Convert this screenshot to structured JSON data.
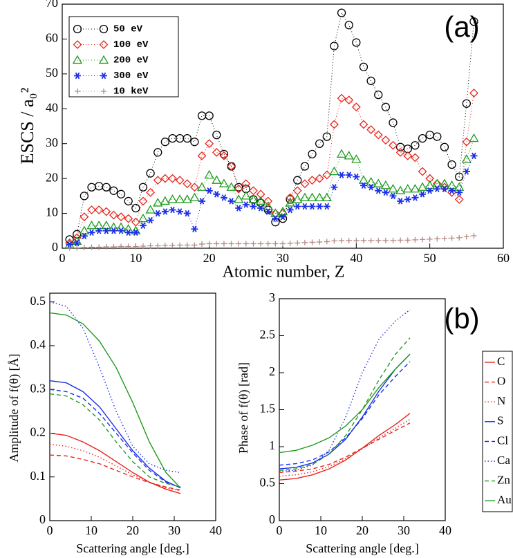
{
  "chart_data": [
    {
      "type": "line",
      "annotation": "(a)",
      "xlabel": "Atomic number, Z",
      "ylabel": "ESCS / a₀²",
      "xlim": [
        0,
        60
      ],
      "xticks": [
        0,
        10,
        20,
        30,
        40,
        50,
        60
      ],
      "ylim": [
        0,
        70
      ],
      "yticks": [
        0,
        10,
        20,
        30,
        40,
        50,
        60,
        70
      ],
      "x": [
        1,
        2,
        3,
        4,
        5,
        6,
        7,
        8,
        9,
        10,
        11,
        12,
        13,
        14,
        15,
        16,
        17,
        18,
        19,
        20,
        21,
        22,
        23,
        24,
        25,
        26,
        27,
        28,
        29,
        30,
        31,
        32,
        33,
        34,
        35,
        36,
        37,
        38,
        39,
        40,
        41,
        42,
        43,
        44,
        45,
        46,
        47,
        48,
        49,
        50,
        51,
        52,
        53,
        54,
        55,
        56
      ],
      "series": [
        {
          "name": "50  eV",
          "color": "#000000",
          "marker": "circle",
          "values": [
            2.5,
            4,
            15,
            17.5,
            17.8,
            17.5,
            16.5,
            15.5,
            13.5,
            11.5,
            17.5,
            21.5,
            27.5,
            30.5,
            31.5,
            31.5,
            31.5,
            30.5,
            38,
            38,
            32.5,
            27,
            23.5,
            17.5,
            17,
            14,
            13,
            11,
            7.5,
            8.5,
            14,
            19.5,
            23.5,
            27,
            30,
            32,
            58,
            67.5,
            64,
            59,
            52,
            48,
            44,
            40.5,
            36,
            29,
            28.5,
            29.5,
            31.5,
            32.5,
            32,
            29,
            24,
            20.5,
            41.5,
            65
          ]
        },
        {
          "name": "100 eV",
          "color": "#e8231c",
          "marker": "diamond",
          "values": [
            1.5,
            3,
            9,
            11,
            11,
            10.5,
            9.5,
            9,
            8.5,
            7.5,
            13.5,
            16,
            19.5,
            20,
            20,
            19.5,
            18.5,
            17.5,
            26.5,
            30,
            27.5,
            26.5,
            23.5,
            17,
            18.5,
            16.5,
            15.5,
            13.5,
            10,
            10,
            14.5,
            16.5,
            18.5,
            19.5,
            20,
            21,
            35.5,
            43,
            42.5,
            40.5,
            35.5,
            34,
            32.5,
            31,
            29.5,
            27.5,
            26.5,
            26,
            22,
            20,
            18.5,
            17.5,
            16,
            14,
            30.5,
            44.5
          ]
        },
        {
          "name": "200 eV",
          "color": "#1f9a1f",
          "marker": "triangle",
          "values": [
            1,
            2,
            5,
            6.5,
            6.5,
            6.5,
            6,
            6,
            5.5,
            5,
            8.5,
            11,
            13,
            13.5,
            14,
            14,
            14,
            14.5,
            17.5,
            21,
            19.5,
            18.5,
            17.5,
            14,
            15,
            14,
            13.5,
            12,
            10,
            10.5,
            13,
            14,
            14.5,
            14.5,
            14.5,
            14.5,
            22,
            27,
            26.5,
            25.5,
            19.5,
            19,
            18.5,
            18,
            17,
            16.5,
            17,
            17,
            17.5,
            18,
            18.5,
            18.5,
            18,
            17.5,
            25.5,
            31.5
          ]
        },
        {
          "name": "300 eV",
          "color": "#1a2ee8",
          "marker": "asterisk",
          "values": [
            1,
            1.5,
            3.5,
            4.5,
            5,
            5,
            5,
            5,
            4.5,
            4.5,
            6.5,
            8,
            10,
            10.5,
            11,
            10.5,
            10,
            5.5,
            13.5,
            16.5,
            15.5,
            14.5,
            13.5,
            11.5,
            12.5,
            12,
            11.5,
            10.5,
            8.5,
            9,
            11,
            12,
            12,
            12,
            12,
            12,
            17.5,
            21,
            21,
            20.5,
            18,
            17.5,
            16.5,
            16,
            15,
            13.5,
            14,
            14.5,
            15.5,
            16.5,
            17,
            17,
            16.5,
            16,
            22,
            26.5
          ]
        },
        {
          "name": "10 keV",
          "color": "#b58a85",
          "marker": "plus",
          "values": [
            0.1,
            0.1,
            0.2,
            0.3,
            0.3,
            0.4,
            0.4,
            0.5,
            0.5,
            0.5,
            0.6,
            0.7,
            0.7,
            0.8,
            0.8,
            0.9,
            0.9,
            0.9,
            1.2,
            1.3,
            1.3,
            1.3,
            1.3,
            1.3,
            1.3,
            1.3,
            1.3,
            1.3,
            1.3,
            1.3,
            1.4,
            1.5,
            1.6,
            1.7,
            1.8,
            1.9,
            2.1,
            2.2,
            2.2,
            2.2,
            2.2,
            2.2,
            2.2,
            2.2,
            2.2,
            2.3,
            2.3,
            2.4,
            2.5,
            2.6,
            2.7,
            2.8,
            2.9,
            3.0,
            3.3,
            3.6
          ]
        }
      ]
    },
    {
      "type": "line",
      "annotation": "(b)",
      "xlabel": "Scattering angle [deg.]",
      "ylabel": "Amplitude of  f(θ)  [Å]",
      "xlim": [
        0,
        40
      ],
      "xticks": [
        0,
        10,
        20,
        30,
        40
      ],
      "ylim": [
        0,
        0.52
      ],
      "yticks": [
        0,
        0.1,
        0.2,
        0.3,
        0.4,
        0.5
      ],
      "x": [
        0,
        4,
        8,
        12,
        16,
        20,
        24,
        28,
        31.5
      ],
      "series": [
        {
          "name": "C",
          "color": "#e8231c",
          "dash": "solid",
          "values": [
            0.2,
            0.195,
            0.18,
            0.16,
            0.135,
            0.11,
            0.088,
            0.072,
            0.062
          ]
        },
        {
          "name": "O",
          "color": "#e8231c",
          "dash": "dashed",
          "values": [
            0.15,
            0.148,
            0.14,
            0.13,
            0.115,
            0.1,
            0.087,
            0.077,
            0.07
          ]
        },
        {
          "name": "N",
          "color": "#e8231c",
          "dash": "dotted",
          "values": [
            0.175,
            0.17,
            0.16,
            0.145,
            0.125,
            0.105,
            0.088,
            0.075,
            0.068
          ]
        },
        {
          "name": "S",
          "color": "#1a2ee8",
          "dash": "solid",
          "values": [
            0.32,
            0.315,
            0.295,
            0.26,
            0.21,
            0.16,
            0.12,
            0.09,
            0.075
          ]
        },
        {
          "name": "Cl",
          "color": "#1a2ee8",
          "dash": "dashed",
          "values": [
            0.3,
            0.295,
            0.28,
            0.245,
            0.2,
            0.155,
            0.115,
            0.088,
            0.075
          ]
        },
        {
          "name": "Ca",
          "color": "#1a2ee8",
          "dash": "dotted",
          "values": [
            0.5,
            0.49,
            0.44,
            0.35,
            0.25,
            0.17,
            0.13,
            0.115,
            0.11
          ]
        },
        {
          "name": "Zn",
          "color": "#1f9a1f",
          "dash": "dashed",
          "values": [
            0.29,
            0.285,
            0.265,
            0.23,
            0.18,
            0.135,
            0.1,
            0.085,
            0.078
          ]
        },
        {
          "name": "Au",
          "color": "#1f9a1f",
          "dash": "solid",
          "values": [
            0.475,
            0.47,
            0.45,
            0.41,
            0.35,
            0.27,
            0.18,
            0.11,
            0.075
          ]
        }
      ]
    },
    {
      "type": "line",
      "xlabel": "Scattering angle [deg.]",
      "ylabel": "Phase of  f(θ) [rad]",
      "xlim": [
        0,
        40
      ],
      "xticks": [
        0,
        10,
        20,
        30,
        40
      ],
      "ylim": [
        0,
        3
      ],
      "yticks": [
        0,
        0.5,
        1,
        1.5,
        2,
        2.5,
        3
      ],
      "x": [
        0,
        4,
        8,
        12,
        16,
        20,
        24,
        28,
        31.5
      ],
      "series": [
        {
          "color": "#e8231c",
          "dash": "solid",
          "values": [
            0.55,
            0.57,
            0.62,
            0.7,
            0.82,
            0.98,
            1.15,
            1.3,
            1.45
          ]
        },
        {
          "color": "#e8231c",
          "dash": "dashed",
          "values": [
            0.65,
            0.67,
            0.7,
            0.76,
            0.86,
            0.98,
            1.1,
            1.22,
            1.32
          ]
        },
        {
          "color": "#e8231c",
          "dash": "dotted",
          "values": [
            0.6,
            0.62,
            0.66,
            0.73,
            0.84,
            0.97,
            1.12,
            1.25,
            1.37
          ]
        },
        {
          "color": "#1a2ee8",
          "dash": "solid",
          "values": [
            0.7,
            0.72,
            0.78,
            0.9,
            1.1,
            1.4,
            1.75,
            2.05,
            2.25
          ]
        },
        {
          "color": "#1a2ee8",
          "dash": "dashed",
          "values": [
            0.75,
            0.77,
            0.82,
            0.93,
            1.12,
            1.38,
            1.7,
            1.95,
            2.15
          ]
        },
        {
          "color": "#1a2ee8",
          "dash": "dotted",
          "values": [
            0.67,
            0.68,
            0.75,
            0.95,
            1.4,
            2.0,
            2.45,
            2.7,
            2.85
          ]
        },
        {
          "color": "#1f9a1f",
          "dash": "dashed",
          "values": [
            0.68,
            0.7,
            0.76,
            0.9,
            1.15,
            1.5,
            1.9,
            2.25,
            2.47
          ]
        },
        {
          "color": "#1f9a1f",
          "dash": "solid",
          "values": [
            0.92,
            0.95,
            1.02,
            1.12,
            1.28,
            1.5,
            1.8,
            2.05,
            2.25
          ]
        }
      ]
    }
  ]
}
